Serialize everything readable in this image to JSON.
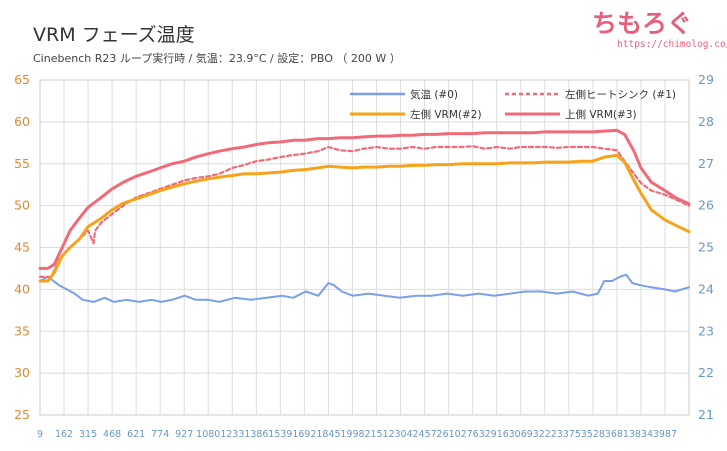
{
  "title": "VRM フェーズ温度",
  "subtitle": "Cinebench R23 ループ実行時 / 気温：23.9°C / 設定：PBO （ 200 W ）",
  "brand": {
    "name": "ちもろぐ",
    "url": "https://chimolog.co/"
  },
  "colors": {
    "ambient": "#7b9fe8",
    "left_heatsink": "#f06a78",
    "left_vrm": "#f5a31a",
    "top_vrm": "#f06a78",
    "grid": "#dddddd",
    "left_axis": "#e08a30",
    "right_axis": "#6a97c4"
  },
  "chart_data": {
    "type": "line",
    "y_left": {
      "ylim": [
        25,
        65
      ],
      "ticks": [
        "25",
        "30",
        "35",
        "40",
        "45",
        "50",
        "55",
        "60",
        "65"
      ]
    },
    "y_right": {
      "ylim": [
        21,
        29
      ],
      "ticks": [
        "21",
        "22",
        "23",
        "24",
        "25",
        "26",
        "27",
        "28",
        "29"
      ]
    },
    "x": {
      "xlim": [
        9,
        4140
      ],
      "ticks": [
        "9",
        "162",
        "315",
        "468",
        "621",
        "774",
        "927",
        "1080",
        "1233",
        "1386",
        "1539",
        "1692",
        "1845",
        "1998",
        "2151",
        "2304",
        "2457",
        "2610",
        "2763",
        "2916",
        "3069",
        "3222",
        "3375",
        "3528",
        "3681",
        "3834",
        "3987"
      ]
    },
    "grid": true,
    "legend_position": "top-right",
    "series": [
      {
        "name": "気温 (#0)",
        "axis": "right",
        "style": "solid",
        "color_key": "ambient",
        "points": [
          [
            9,
            24.2
          ],
          [
            60,
            24.3
          ],
          [
            130,
            24.1
          ],
          [
            180,
            24.0
          ],
          [
            230,
            23.9
          ],
          [
            280,
            23.75
          ],
          [
            350,
            23.7
          ],
          [
            420,
            23.8
          ],
          [
            480,
            23.7
          ],
          [
            560,
            23.75
          ],
          [
            640,
            23.7
          ],
          [
            720,
            23.75
          ],
          [
            780,
            23.7
          ],
          [
            850,
            23.75
          ],
          [
            930,
            23.85
          ],
          [
            1000,
            23.75
          ],
          [
            1080,
            23.75
          ],
          [
            1150,
            23.7
          ],
          [
            1250,
            23.8
          ],
          [
            1350,
            23.75
          ],
          [
            1450,
            23.8
          ],
          [
            1550,
            23.85
          ],
          [
            1620,
            23.8
          ],
          [
            1700,
            23.95
          ],
          [
            1780,
            23.85
          ],
          [
            1845,
            24.15
          ],
          [
            1880,
            24.1
          ],
          [
            1930,
            23.95
          ],
          [
            2000,
            23.85
          ],
          [
            2100,
            23.9
          ],
          [
            2200,
            23.85
          ],
          [
            2300,
            23.8
          ],
          [
            2400,
            23.85
          ],
          [
            2500,
            23.85
          ],
          [
            2600,
            23.9
          ],
          [
            2700,
            23.85
          ],
          [
            2800,
            23.9
          ],
          [
            2900,
            23.85
          ],
          [
            3000,
            23.9
          ],
          [
            3100,
            23.95
          ],
          [
            3200,
            23.95
          ],
          [
            3300,
            23.9
          ],
          [
            3400,
            23.95
          ],
          [
            3500,
            23.85
          ],
          [
            3560,
            23.9
          ],
          [
            3600,
            24.2
          ],
          [
            3650,
            24.2
          ],
          [
            3700,
            24.3
          ],
          [
            3740,
            24.35
          ],
          [
            3780,
            24.15
          ],
          [
            3830,
            24.1
          ],
          [
            3900,
            24.05
          ],
          [
            3987,
            24.0
          ],
          [
            4050,
            23.95
          ],
          [
            4140,
            24.05
          ]
        ]
      },
      {
        "name": "左側ヒートシンク (#1)",
        "axis": "left",
        "style": "dashed",
        "color_key": "left_heatsink",
        "points": [
          [
            9,
            41.5
          ],
          [
            80,
            41.5
          ],
          [
            130,
            43.5
          ],
          [
            200,
            45
          ],
          [
            260,
            46
          ],
          [
            315,
            47
          ],
          [
            350,
            45.5
          ],
          [
            360,
            47
          ],
          [
            400,
            48
          ],
          [
            468,
            49
          ],
          [
            540,
            50
          ],
          [
            621,
            51
          ],
          [
            700,
            51.5
          ],
          [
            774,
            52
          ],
          [
            850,
            52.5
          ],
          [
            927,
            53
          ],
          [
            1000,
            53.3
          ],
          [
            1080,
            53.5
          ],
          [
            1150,
            53.8
          ],
          [
            1233,
            54.5
          ],
          [
            1300,
            54.8
          ],
          [
            1386,
            55.3
          ],
          [
            1460,
            55.5
          ],
          [
            1539,
            55.8
          ],
          [
            1600,
            56
          ],
          [
            1692,
            56.2
          ],
          [
            1780,
            56.5
          ],
          [
            1845,
            57
          ],
          [
            1920,
            56.6
          ],
          [
            1998,
            56.5
          ],
          [
            2070,
            56.8
          ],
          [
            2151,
            57
          ],
          [
            2230,
            56.8
          ],
          [
            2304,
            56.8
          ],
          [
            2380,
            57
          ],
          [
            2457,
            56.8
          ],
          [
            2530,
            57
          ],
          [
            2610,
            57
          ],
          [
            2700,
            57
          ],
          [
            2763,
            57.1
          ],
          [
            2840,
            56.8
          ],
          [
            2916,
            57
          ],
          [
            3000,
            56.8
          ],
          [
            3069,
            57
          ],
          [
            3150,
            57
          ],
          [
            3222,
            57
          ],
          [
            3300,
            56.9
          ],
          [
            3375,
            57
          ],
          [
            3450,
            57
          ],
          [
            3528,
            57
          ],
          [
            3600,
            56.8
          ],
          [
            3681,
            56.6
          ],
          [
            3750,
            54.8
          ],
          [
            3834,
            52.7
          ],
          [
            3900,
            51.8
          ],
          [
            3987,
            51.3
          ],
          [
            4060,
            50.7
          ],
          [
            4140,
            50.0
          ]
        ]
      },
      {
        "name": "左側 VRM(#2)",
        "axis": "left",
        "style": "solid",
        "color_key": "left_vrm",
        "points": [
          [
            9,
            41
          ],
          [
            60,
            41
          ],
          [
            100,
            42
          ],
          [
            150,
            44
          ],
          [
            200,
            45
          ],
          [
            260,
            46
          ],
          [
            315,
            47.5
          ],
          [
            400,
            48.5
          ],
          [
            468,
            49.5
          ],
          [
            540,
            50.3
          ],
          [
            621,
            50.8
          ],
          [
            700,
            51.3
          ],
          [
            774,
            51.8
          ],
          [
            850,
            52.2
          ],
          [
            927,
            52.6
          ],
          [
            1000,
            52.9
          ],
          [
            1080,
            53.2
          ],
          [
            1150,
            53.4
          ],
          [
            1233,
            53.6
          ],
          [
            1310,
            53.8
          ],
          [
            1386,
            53.8
          ],
          [
            1460,
            53.9
          ],
          [
            1539,
            54
          ],
          [
            1620,
            54.2
          ],
          [
            1692,
            54.3
          ],
          [
            1780,
            54.5
          ],
          [
            1845,
            54.7
          ],
          [
            1920,
            54.6
          ],
          [
            1998,
            54.5
          ],
          [
            2070,
            54.6
          ],
          [
            2151,
            54.6
          ],
          [
            2230,
            54.7
          ],
          [
            2304,
            54.7
          ],
          [
            2380,
            54.8
          ],
          [
            2457,
            54.8
          ],
          [
            2530,
            54.9
          ],
          [
            2610,
            54.9
          ],
          [
            2700,
            55
          ],
          [
            2763,
            55
          ],
          [
            2840,
            55
          ],
          [
            2916,
            55
          ],
          [
            3000,
            55.1
          ],
          [
            3069,
            55.1
          ],
          [
            3150,
            55.1
          ],
          [
            3222,
            55.2
          ],
          [
            3300,
            55.2
          ],
          [
            3375,
            55.2
          ],
          [
            3450,
            55.3
          ],
          [
            3528,
            55.3
          ],
          [
            3600,
            55.8
          ],
          [
            3681,
            56.0
          ],
          [
            3730,
            55.2
          ],
          [
            3790,
            53.0
          ],
          [
            3834,
            51.5
          ],
          [
            3900,
            49.5
          ],
          [
            3987,
            48.3
          ],
          [
            4060,
            47.6
          ],
          [
            4140,
            46.9
          ]
        ]
      },
      {
        "name": "上側 VRM(#3)",
        "axis": "left",
        "style": "solid",
        "color_key": "top_vrm",
        "points": [
          [
            9,
            42.5
          ],
          [
            60,
            42.5
          ],
          [
            100,
            43
          ],
          [
            150,
            45
          ],
          [
            200,
            47
          ],
          [
            260,
            48.5
          ],
          [
            315,
            49.8
          ],
          [
            400,
            51
          ],
          [
            468,
            52
          ],
          [
            540,
            52.8
          ],
          [
            621,
            53.5
          ],
          [
            700,
            54
          ],
          [
            774,
            54.5
          ],
          [
            850,
            55
          ],
          [
            927,
            55.3
          ],
          [
            1000,
            55.8
          ],
          [
            1080,
            56.2
          ],
          [
            1150,
            56.5
          ],
          [
            1233,
            56.8
          ],
          [
            1310,
            57
          ],
          [
            1386,
            57.3
          ],
          [
            1460,
            57.5
          ],
          [
            1539,
            57.6
          ],
          [
            1620,
            57.8
          ],
          [
            1692,
            57.8
          ],
          [
            1780,
            58
          ],
          [
            1845,
            58
          ],
          [
            1920,
            58.1
          ],
          [
            1998,
            58.1
          ],
          [
            2070,
            58.2
          ],
          [
            2151,
            58.3
          ],
          [
            2230,
            58.3
          ],
          [
            2304,
            58.4
          ],
          [
            2380,
            58.4
          ],
          [
            2457,
            58.5
          ],
          [
            2530,
            58.5
          ],
          [
            2610,
            58.6
          ],
          [
            2700,
            58.6
          ],
          [
            2763,
            58.6
          ],
          [
            2840,
            58.7
          ],
          [
            2916,
            58.7
          ],
          [
            3000,
            58.7
          ],
          [
            3069,
            58.7
          ],
          [
            3150,
            58.7
          ],
          [
            3222,
            58.8
          ],
          [
            3300,
            58.8
          ],
          [
            3375,
            58.8
          ],
          [
            3450,
            58.8
          ],
          [
            3528,
            58.8
          ],
          [
            3600,
            58.9
          ],
          [
            3681,
            59.0
          ],
          [
            3730,
            58.5
          ],
          [
            3790,
            56.5
          ],
          [
            3834,
            54.5
          ],
          [
            3900,
            52.8
          ],
          [
            3987,
            51.8
          ],
          [
            4060,
            50.9
          ],
          [
            4140,
            50.2
          ]
        ]
      }
    ]
  }
}
